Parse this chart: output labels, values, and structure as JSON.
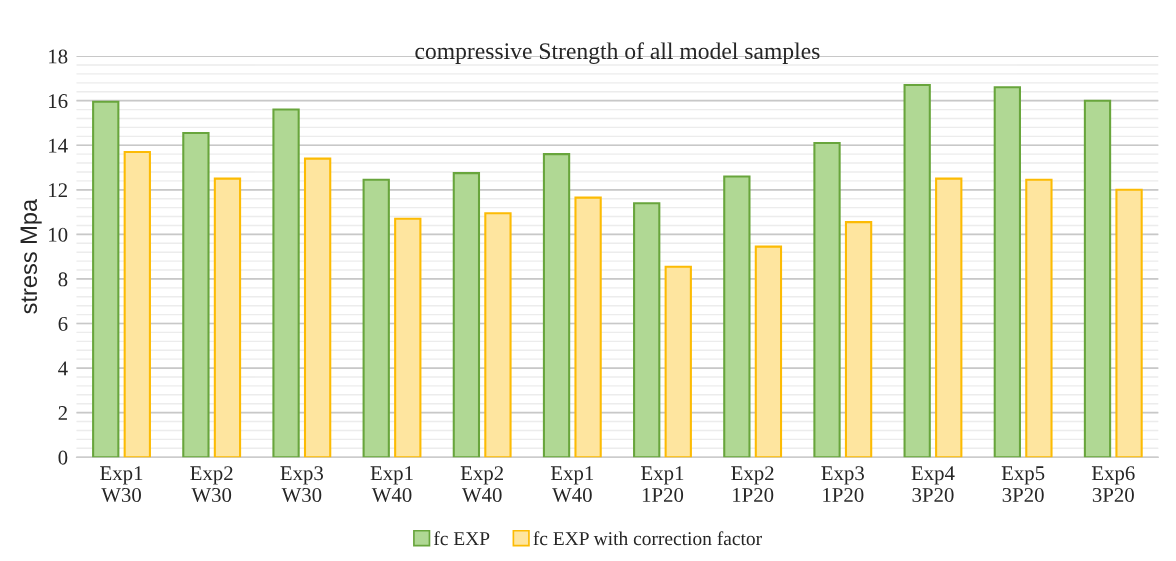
{
  "chart_data": {
    "type": "bar",
    "title": "compressive Strength of all model samples",
    "ylabel": "stress Mpa",
    "categories": [
      "Exp1\nW30",
      "Exp2\nW30",
      "Exp3\nW30",
      "Exp1\nW40",
      "Exp2\nW40",
      "Exp1\nW40",
      "Exp1\n1P20",
      "Exp2\n1P20",
      "Exp3\n1P20",
      "Exp4\n3P20",
      "Exp5\n3P20",
      "Exp6\n3P20"
    ],
    "series": [
      {
        "name": "fc EXP",
        "color": "#b0d894",
        "values": [
          15.95,
          14.55,
          15.6,
          12.45,
          12.75,
          13.6,
          11.4,
          12.6,
          14.1,
          16.7,
          16.6,
          16.0
        ]
      },
      {
        "name": "fc EXP with correction factor",
        "color": "#fee59f",
        "values": [
          13.7,
          12.5,
          13.4,
          10.7,
          10.95,
          11.65,
          8.55,
          9.45,
          10.55,
          12.5,
          12.45,
          12.0
        ]
      }
    ],
    "ylim": [
      0,
      18
    ],
    "yticks": [
      0,
      2,
      4,
      6,
      8,
      10,
      12,
      14,
      16,
      18
    ],
    "grid": "y",
    "legend": "bottom"
  }
}
